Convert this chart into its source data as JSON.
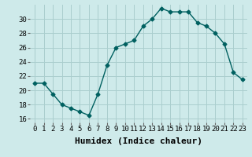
{
  "x": [
    0,
    1,
    2,
    3,
    4,
    5,
    6,
    7,
    8,
    9,
    10,
    11,
    12,
    13,
    14,
    15,
    16,
    17,
    18,
    19,
    20,
    21,
    22,
    23
  ],
  "y": [
    21,
    21,
    19.5,
    18,
    17.5,
    17,
    16.5,
    19.5,
    23.5,
    26,
    26.5,
    27,
    29,
    30,
    31.5,
    31,
    31,
    31,
    29.5,
    29,
    28,
    26.5,
    22.5,
    21.5
  ],
  "line_color": "#006060",
  "marker": "D",
  "marker_size": 2.5,
  "bg_color": "#ceeaea",
  "grid_color": "#aacece",
  "xlabel": "Humidex (Indice chaleur)",
  "xlim": [
    -0.5,
    23.5
  ],
  "ylim": [
    15.5,
    32
  ],
  "yticks": [
    16,
    18,
    20,
    22,
    24,
    26,
    28,
    30
  ],
  "xticks": [
    0,
    1,
    2,
    3,
    4,
    5,
    6,
    7,
    8,
    9,
    10,
    11,
    12,
    13,
    14,
    15,
    16,
    17,
    18,
    19,
    20,
    21,
    22,
    23
  ],
  "xlabel_fontsize": 8,
  "tick_fontsize": 6.5,
  "line_width": 1.0
}
